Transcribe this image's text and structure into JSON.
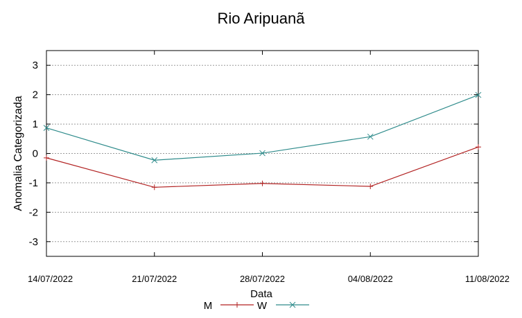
{
  "chart_data": {
    "type": "line",
    "title": "Rio Aripuanã",
    "xlabel": "Data",
    "ylabel": "Anomalia Categorizada",
    "categories": [
      "14/07/2022",
      "21/07/2022",
      "28/07/2022",
      "04/08/2022",
      "11/08/2022"
    ],
    "y_ticks": [
      -3,
      -2,
      -1,
      0,
      1,
      2,
      3
    ],
    "ylim": [
      -3.5,
      3.5
    ],
    "grid": true,
    "legend_position": "bottom",
    "series": [
      {
        "name": "M",
        "values": [
          -0.15,
          -1.15,
          -1.02,
          -1.12,
          0.22
        ],
        "color": "#b22222",
        "marker": "plus"
      },
      {
        "name": "W",
        "values": [
          0.87,
          -0.23,
          0.01,
          0.57,
          1.99
        ],
        "color": "#2e8b8b",
        "marker": "cross"
      }
    ]
  }
}
